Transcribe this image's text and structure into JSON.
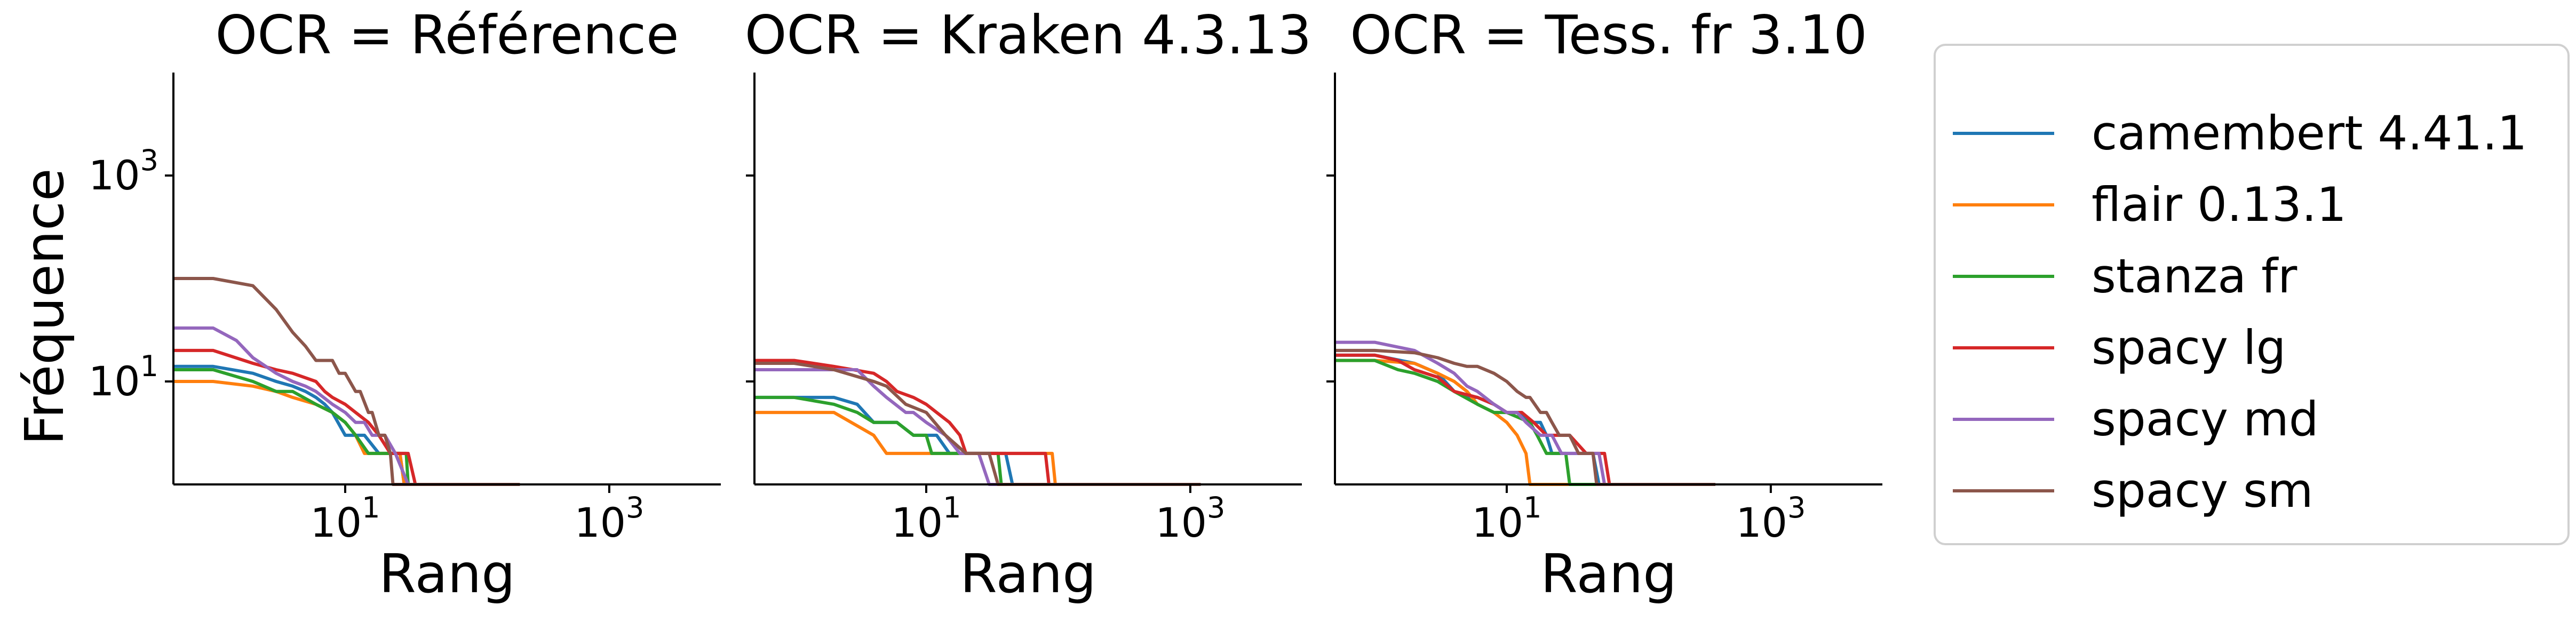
{
  "chart_data": {
    "type": "line",
    "xscale": "log",
    "yscale": "log",
    "xlabel": "Rang",
    "ylabel": "Fréquence",
    "xlim": [
      0.5,
      7000
    ],
    "ylim": [
      1,
      10000
    ],
    "x_ticks": [
      {
        "base": "10",
        "exp": "1",
        "value": 10
      },
      {
        "base": "10",
        "exp": "3",
        "value": 1000
      }
    ],
    "y_ticks": [
      {
        "base": "10",
        "exp": "1",
        "value": 10
      },
      {
        "base": "10",
        "exp": "3",
        "value": 1000
      }
    ],
    "legend": {
      "position": "right"
    },
    "grid": false,
    "series_meta": [
      {
        "name": "camembert 4.41.1",
        "color": "#1f77b4"
      },
      {
        "name": "flair 0.13.1",
        "color": "#ff7f0e"
      },
      {
        "name": "stanza fr",
        "color": "#2ca02c"
      },
      {
        "name": "spacy lg",
        "color": "#d62728"
      },
      {
        "name": "spacy md",
        "color": "#9467bd"
      },
      {
        "name": "spacy sm",
        "color": "#8c564b"
      }
    ],
    "panels": [
      {
        "title": "OCR = Référence",
        "series": [
          {
            "name": "camembert 4.41.1",
            "x": [
              0.5,
              1,
              2,
              3,
              4,
              5,
              6,
              7,
              8,
              10,
              12,
              14,
              18,
              22,
              26,
              28,
              210
            ],
            "y": [
              14,
              14,
              12,
              10,
              9,
              8,
              7,
              6,
              5,
              3,
              3,
              3,
              2,
              2,
              2,
              1,
              1
            ]
          },
          {
            "name": "flair 0.13.1",
            "x": [
              0.5,
              1,
              2,
              3,
              4,
              6,
              8,
              10,
              12,
              14,
              26,
              28,
              210
            ],
            "y": [
              10,
              10,
              9,
              8,
              7,
              6,
              5,
              4,
              3,
              2,
              2,
              1,
              1
            ]
          },
          {
            "name": "stanza fr",
            "x": [
              0.5,
              1,
              2,
              3,
              4,
              6,
              8,
              10,
              12,
              15,
              19,
              22,
              29,
              30,
              210
            ],
            "y": [
              13,
              13,
              10,
              8,
              8,
              6,
              5,
              4,
              3,
              2,
              2,
              2,
              2,
              1,
              1
            ]
          },
          {
            "name": "spacy lg",
            "x": [
              0.5,
              1,
              2,
              3,
              4,
              6,
              7,
              8,
              10,
              12,
              15,
              18,
              22,
              25,
              30,
              34,
              210
            ],
            "y": [
              20,
              20,
              15,
              13,
              12,
              10,
              8,
              7,
              6,
              5,
              4,
              3,
              2,
              2,
              2,
              1,
              1
            ]
          },
          {
            "name": "spacy md",
            "x": [
              0.5,
              1,
              1.5,
              2,
              3,
              4,
              5,
              6,
              8,
              10,
              12,
              14,
              16,
              20,
              24,
              30,
              210
            ],
            "y": [
              33,
              33,
              25,
              17,
              12,
              10,
              9,
              8,
              6,
              5,
              4,
              4,
              3,
              3,
              2,
              1,
              1
            ]
          },
          {
            "name": "spacy sm",
            "x": [
              0.5,
              1,
              2,
              3,
              4,
              5,
              6,
              8,
              9,
              10,
              12,
              13,
              15,
              16,
              18,
              20,
              22,
              23,
              210
            ],
            "y": [
              100,
              100,
              85,
              50,
              30,
              22,
              16,
              16,
              12,
              12,
              8,
              8,
              5,
              5,
              3,
              3,
              2,
              1,
              1
            ]
          }
        ]
      },
      {
        "title": "OCR = Kraken 4.3.13",
        "series": [
          {
            "name": "camembert 4.41.1",
            "x": [
              0.5,
              1,
              2,
              3,
              4,
              6,
              8,
              12,
              15,
              20,
              40,
              45,
              1200
            ],
            "y": [
              7,
              7,
              7,
              6,
              4,
              4,
              3,
              3,
              2,
              2,
              2,
              1,
              1
            ]
          },
          {
            "name": "flair 0.13.1",
            "x": [
              0.5,
              1,
              2,
              4,
              5,
              7,
              8,
              30,
              90,
              95,
              1200
            ],
            "y": [
              5,
              5,
              5,
              3,
              2,
              2,
              2,
              2,
              2,
              1,
              1
            ]
          },
          {
            "name": "stanza fr",
            "x": [
              0.5,
              1,
              2,
              3,
              4,
              6,
              8,
              10,
              11,
              35,
              37,
              40,
              1200
            ],
            "y": [
              7,
              7,
              6,
              5,
              4,
              4,
              3,
              3,
              2,
              2,
              1,
              1,
              1
            ]
          },
          {
            "name": "spacy lg",
            "x": [
              0.5,
              1,
              2,
              4,
              5,
              6,
              8,
              10,
              12,
              15,
              18,
              20,
              80,
              85,
              1200
            ],
            "y": [
              16,
              16,
              14,
              12,
              10,
              8,
              7,
              6,
              5,
              4,
              3,
              2,
              2,
              1,
              1
            ]
          },
          {
            "name": "spacy md",
            "x": [
              0.5,
              1,
              3,
              4,
              5,
              7,
              8,
              10,
              14,
              18,
              22,
              25,
              30,
              1200
            ],
            "y": [
              13,
              13,
              13,
              9,
              7,
              5,
              5,
              4,
              3,
              2,
              2,
              2,
              1,
              1
            ]
          },
          {
            "name": "spacy sm",
            "x": [
              0.5,
              1,
              2,
              4,
              5,
              7,
              10,
              14,
              20,
              30,
              35,
              1200
            ],
            "y": [
              15,
              15,
              13,
              10,
              9,
              6,
              5,
              3,
              2,
              2,
              1,
              1
            ]
          }
        ]
      },
      {
        "title": "OCR = Tess. fr 3.10",
        "series": [
          {
            "name": "camembert 4.41.1",
            "x": [
              0.5,
              1,
              2,
              3,
              4,
              5,
              6,
              8,
              10,
              12,
              15,
              18,
              20,
              22,
              30,
              35,
              45,
              50,
              380
            ],
            "y": [
              18,
              18,
              15,
              12,
              8,
              7,
              7,
              6,
              5,
              5,
              4,
              4,
              3,
              2,
              2,
              2,
              2,
              1,
              1
            ]
          },
          {
            "name": "flair 0.13.1",
            "x": [
              0.5,
              1,
              2,
              3,
              4,
              5,
              6,
              8,
              10,
              12,
              14,
              15,
              50,
              380
            ],
            "y": [
              16,
              16,
              15,
              12,
              10,
              8,
              6,
              5,
              4,
              3,
              2,
              1,
              1,
              1
            ]
          },
          {
            "name": "stanza fr",
            "x": [
              0.5,
              1,
              1.5,
              2,
              3,
              4,
              6,
              8,
              10,
              15,
              17,
              20,
              24,
              28,
              30,
              380
            ],
            "y": [
              16,
              16,
              13,
              12,
              10,
              8,
              6,
              5,
              5,
              4,
              3,
              2,
              2,
              2,
              1,
              1
            ]
          },
          {
            "name": "spacy lg",
            "x": [
              0.5,
              1,
              1.5,
              2,
              3,
              4,
              6,
              8,
              10,
              13,
              16,
              20,
              24,
              30,
              40,
              55,
              60,
              380
            ],
            "y": [
              18,
              18,
              16,
              13,
              11,
              8,
              7,
              6,
              5,
              5,
              4,
              3,
              3,
              3,
              2,
              2,
              1,
              1
            ]
          },
          {
            "name": "spacy md",
            "x": [
              0.5,
              1,
              2,
              3,
              4,
              5,
              6,
              8,
              10,
              12,
              14,
              18,
              22,
              26,
              30,
              50,
              55,
              380
            ],
            "y": [
              24,
              24,
              20,
              15,
              12,
              9,
              8,
              6,
              5,
              5,
              4,
              3,
              3,
              2,
              2,
              2,
              1,
              1
            ]
          },
          {
            "name": "spacy sm",
            "x": [
              0.5,
              1,
              2,
              3,
              4,
              5,
              6,
              8,
              10,
              12,
              14,
              15,
              18,
              20,
              22,
              25,
              30,
              35,
              40,
              45,
              48,
              380
            ],
            "y": [
              20,
              20,
              19,
              17,
              15,
              14,
              14,
              12,
              10,
              8,
              7,
              7,
              5,
              5,
              4,
              3,
              3,
              2,
              2,
              2,
              1,
              1
            ]
          }
        ]
      }
    ]
  }
}
